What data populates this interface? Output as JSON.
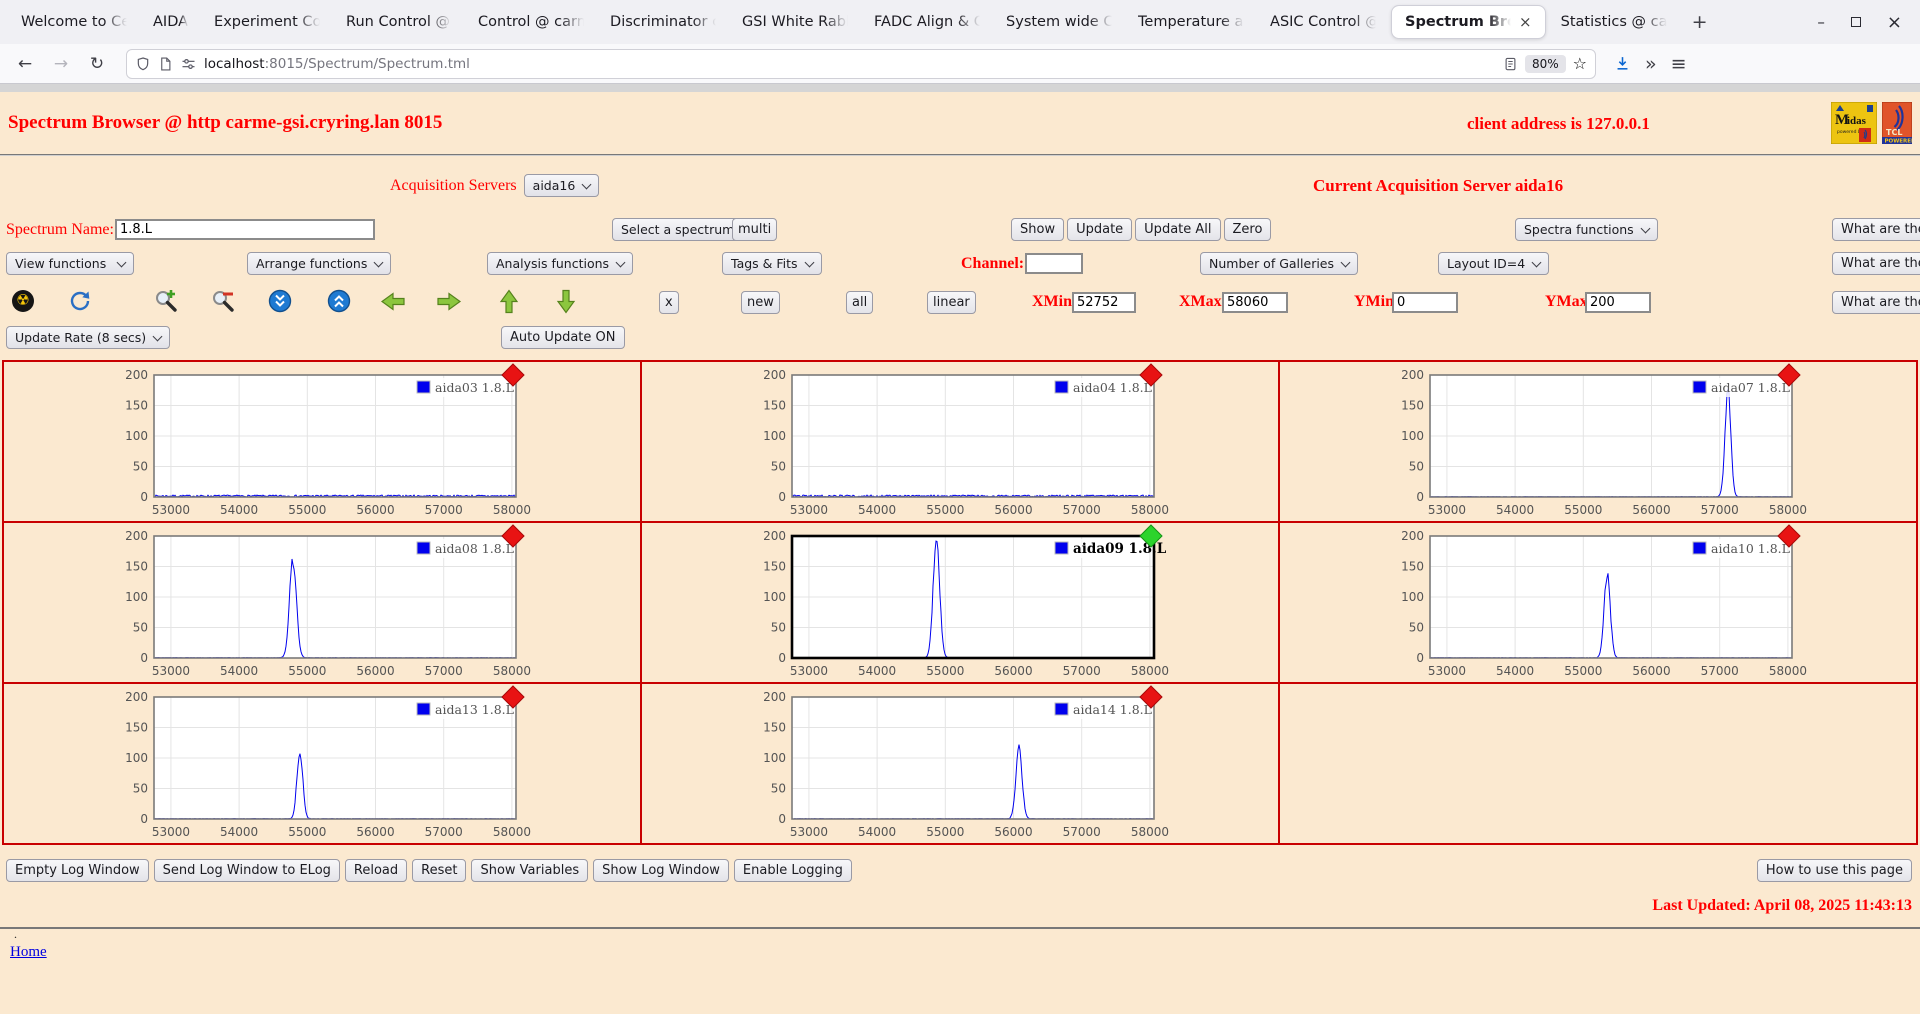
{
  "colors": {
    "page_bg": "#fbe9d0",
    "label_red": "#ff0000",
    "grid_border_red": "#c80000",
    "spectrum_line": "#0000ee",
    "marker_red": "#e81313",
    "marker_green": "#2cd42c"
  },
  "browser": {
    "tabs": [
      {
        "label": "Welcome to Cent"
      },
      {
        "label": "AIDA"
      },
      {
        "label": "Experiment Contr"
      },
      {
        "label": "Run Control @ ca"
      },
      {
        "label": "Control @ carme"
      },
      {
        "label": "Discriminator con"
      },
      {
        "label": "GSI White Rabbit"
      },
      {
        "label": "FADC Align & Co"
      },
      {
        "label": "System wide Che"
      },
      {
        "label": "Temperature and"
      },
      {
        "label": "ASIC Control @ c"
      },
      {
        "label": "Spectrum Brow",
        "active": true
      },
      {
        "label": "Statistics @ carm"
      }
    ],
    "new_tab_label": "+",
    "tab_close_glyph": "×",
    "window_controls": {
      "minimize": "–",
      "close": "×"
    },
    "nav": {
      "back": "←",
      "forward": "→",
      "reload": "↻"
    },
    "url": {
      "host": "localhost",
      "path": ":8015/Spectrum/Spectrum.tml"
    },
    "zoom_badge": "80%",
    "star_glyph": "☆",
    "overflow_glyph": "»",
    "menu_glyph": "≡"
  },
  "header": {
    "title": "Spectrum Browser @ http carme-gsi.cryring.lan 8015",
    "client": "client address is 127.0.0.1",
    "midas_logo_text": "Midas",
    "midas_powered": "powered by",
    "tcl_logo_text": "TCL",
    "tcl_powered": "POWERED"
  },
  "acquisition": {
    "label": "Acquisition Servers",
    "server": "aida16",
    "current": "Current Acquisition Server aida16"
  },
  "spectrum_row": {
    "name_label": "Spectrum Name:",
    "name_value": "1.8.L",
    "select_spectrum": "Select a spectrum",
    "multi": "multi",
    "show": "Show",
    "update": "Update",
    "update_all": "Update All",
    "zero": "Zero",
    "spectra_functions": "Spectra functions",
    "what_are_these": "What are these?"
  },
  "function_row": {
    "view": "View functions",
    "arrange": "Arrange functions",
    "analysis": "Analysis functions",
    "tags": "Tags & Fits",
    "channel_label": "Channel:",
    "channel_value": "",
    "galleries": "Number of Galleries",
    "layout": "Layout ID=4",
    "what_are_these": "What are these?"
  },
  "range_row": {
    "icons": [
      "radioactive",
      "refresh",
      "zoom-in",
      "zoom-out",
      "scroll-down",
      "scroll-up",
      "arrow-left",
      "arrow-right",
      "arrow-up",
      "arrow-down"
    ],
    "radioactive_glyph": "☢",
    "x_btn": "x",
    "new_btn": "new",
    "all_btn": "all",
    "linear_btn": "linear",
    "xmin_label": "XMin",
    "xmin": "52752",
    "xmax_label": "XMax",
    "xmax": "58060",
    "ymin_label": "YMin",
    "ymin": "0",
    "ymax_label": "YMax",
    "ymax": "200",
    "what_are_these": "What are these?"
  },
  "update_row": {
    "rate": "Update Rate (8 secs)",
    "auto": "Auto Update ON"
  },
  "footer": {
    "log_buttons": [
      "Empty Log Window",
      "Send Log Window to ELog",
      "Reload",
      "Reset",
      "Show Variables",
      "Show Log Window",
      "Enable Logging"
    ],
    "help_button": "How to use this page",
    "last_updated": "Last Updated: April 08, 2025 11:43:13",
    "bullet": ".",
    "home_link": "Home"
  },
  "chart_data": {
    "type": "line",
    "xlim": [
      52752,
      58060
    ],
    "ylim": [
      0,
      200
    ],
    "x_ticks": [
      53000,
      54000,
      55000,
      56000,
      57000,
      58000
    ],
    "y_ticks": [
      0,
      50,
      100,
      150,
      200
    ],
    "grid": true,
    "legend_position": "top-right",
    "line_color": "#0000ee",
    "charts": [
      {
        "name": "aida03",
        "legend": "aida03 1.8.L",
        "marker": "red",
        "selected": false,
        "baseline_noise": 3.2,
        "peak": null
      },
      {
        "name": "aida04",
        "legend": "aida04 1.8.L",
        "marker": "red",
        "selected": false,
        "baseline_noise": 3.2,
        "peak": null
      },
      {
        "name": "aida07",
        "legend": "aida07 1.8.L",
        "marker": "red",
        "selected": false,
        "baseline_noise": 0.8,
        "peak": {
          "center": 57120,
          "height": 178,
          "sigma": 42
        }
      },
      {
        "name": "aida08",
        "legend": "aida08 1.8.L",
        "marker": "red",
        "selected": false,
        "baseline_noise": 0.8,
        "peak": {
          "center": 54790,
          "height": 162,
          "sigma": 50
        }
      },
      {
        "name": "aida09",
        "legend": "aida09 1.8.L",
        "marker": "green",
        "selected": true,
        "baseline_noise": 0.8,
        "peak": {
          "center": 54870,
          "height": 193,
          "sigma": 48
        }
      },
      {
        "name": "aida10",
        "legend": "aida10 1.8.L",
        "marker": "red",
        "selected": false,
        "baseline_noise": 0.8,
        "peak": {
          "center": 55350,
          "height": 140,
          "sigma": 45
        }
      },
      {
        "name": "aida13",
        "legend": "aida13 1.8.L",
        "marker": "red",
        "selected": false,
        "baseline_noise": 0.8,
        "peak": {
          "center": 54890,
          "height": 112,
          "sigma": 42
        }
      },
      {
        "name": "aida14",
        "legend": "aida14 1.8.L",
        "marker": "red",
        "selected": false,
        "baseline_noise": 0.8,
        "peak": {
          "center": 56080,
          "height": 117,
          "sigma": 45
        }
      }
    ]
  }
}
